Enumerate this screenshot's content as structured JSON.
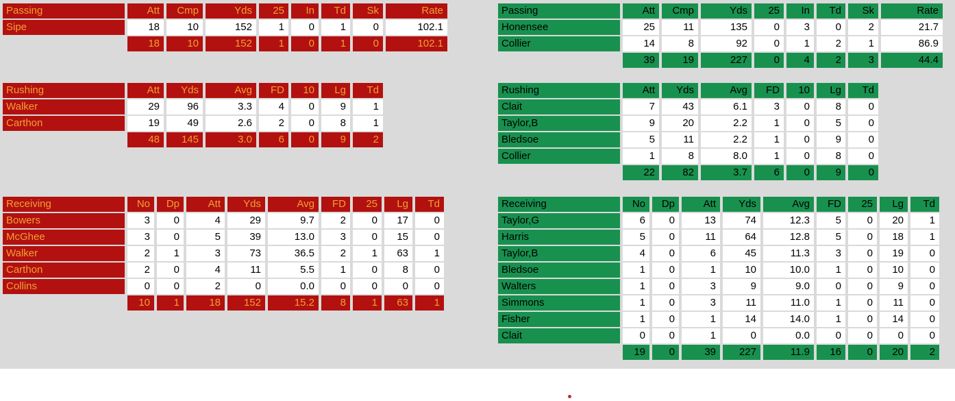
{
  "page": {
    "background": "#DADADA",
    "footer_background": "#FFFFFF",
    "marker_color": "#C13030"
  },
  "sections": [
    {
      "team": "left",
      "theme": {
        "header_bg": "#B21110",
        "header_text": "#F2A033"
      },
      "tables": [
        {
          "title": "Passing",
          "columns": [
            "Att",
            "Cmp",
            "Yds",
            "25",
            "In",
            "Td",
            "Sk",
            "Rate"
          ],
          "rows": [
            {
              "name": "Sipe",
              "values": [
                "18",
                "10",
                "152",
                "1",
                "0",
                "1",
                "0",
                "102.1"
              ]
            }
          ],
          "totals": [
            "18",
            "10",
            "152",
            "1",
            "0",
            "1",
            "0",
            "102.1"
          ]
        },
        {
          "title": "Rushing",
          "columns": [
            "Att",
            "Yds",
            "Avg",
            "FD",
            "10",
            "Lg",
            "Td"
          ],
          "rows": [
            {
              "name": "Walker",
              "values": [
                "29",
                "96",
                "3.3",
                "4",
                "0",
                "9",
                "1"
              ]
            },
            {
              "name": "Carthon",
              "values": [
                "19",
                "49",
                "2.6",
                "2",
                "0",
                "8",
                "1"
              ]
            }
          ],
          "totals": [
            "48",
            "145",
            "3.0",
            "6",
            "0",
            "9",
            "2"
          ]
        },
        {
          "title": "Receiving",
          "columns": [
            "No",
            "Dp",
            "Att",
            "Yds",
            "Avg",
            "FD",
            "25",
            "Lg",
            "Td"
          ],
          "rows": [
            {
              "name": "Bowers",
              "values": [
                "3",
                "0",
                "4",
                "29",
                "9.7",
                "2",
                "0",
                "17",
                "0"
              ]
            },
            {
              "name": "McGhee",
              "values": [
                "3",
                "0",
                "5",
                "39",
                "13.0",
                "3",
                "0",
                "15",
                "0"
              ]
            },
            {
              "name": "Walker",
              "values": [
                "2",
                "1",
                "3",
                "73",
                "36.5",
                "2",
                "1",
                "63",
                "1"
              ]
            },
            {
              "name": "Carthon",
              "values": [
                "2",
                "0",
                "4",
                "11",
                "5.5",
                "1",
                "0",
                "8",
                "0"
              ]
            },
            {
              "name": "Collins",
              "values": [
                "0",
                "0",
                "2",
                "0",
                "0.0",
                "0",
                "0",
                "0",
                "0"
              ]
            }
          ],
          "totals": [
            "10",
            "1",
            "18",
            "152",
            "15.2",
            "8",
            "1",
            "63",
            "1"
          ]
        }
      ]
    },
    {
      "team": "right",
      "theme": {
        "header_bg": "#18914F",
        "header_text": "#000000"
      },
      "tables": [
        {
          "title": "Passing",
          "columns": [
            "Att",
            "Cmp",
            "Yds",
            "25",
            "In",
            "Td",
            "Sk",
            "Rate"
          ],
          "rows": [
            {
              "name": "Honensee",
              "values": [
                "25",
                "11",
                "135",
                "0",
                "3",
                "0",
                "2",
                "21.7"
              ]
            },
            {
              "name": "Collier",
              "values": [
                "14",
                "8",
                "92",
                "0",
                "1",
                "2",
                "1",
                "86.9"
              ]
            }
          ],
          "totals": [
            "39",
            "19",
            "227",
            "0",
            "4",
            "2",
            "3",
            "44.4"
          ]
        },
        {
          "title": "Rushing",
          "columns": [
            "Att",
            "Yds",
            "Avg",
            "FD",
            "10",
            "Lg",
            "Td"
          ],
          "rows": [
            {
              "name": "Clait",
              "values": [
                "7",
                "43",
                "6.1",
                "3",
                "0",
                "8",
                "0"
              ]
            },
            {
              "name": "Taylor,B",
              "values": [
                "9",
                "20",
                "2.2",
                "1",
                "0",
                "5",
                "0"
              ]
            },
            {
              "name": "Bledsoe",
              "values": [
                "5",
                "11",
                "2.2",
                "1",
                "0",
                "9",
                "0"
              ]
            },
            {
              "name": "Collier",
              "values": [
                "1",
                "8",
                "8.0",
                "1",
                "0",
                "8",
                "0"
              ]
            }
          ],
          "totals": [
            "22",
            "82",
            "3.7",
            "6",
            "0",
            "9",
            "0"
          ]
        },
        {
          "title": "Receiving",
          "columns": [
            "No",
            "Dp",
            "Att",
            "Yds",
            "Avg",
            "FD",
            "25",
            "Lg",
            "Td"
          ],
          "rows": [
            {
              "name": "Taylor,G",
              "values": [
                "6",
                "0",
                "13",
                "74",
                "12.3",
                "5",
                "0",
                "20",
                "1"
              ]
            },
            {
              "name": "Harris",
              "values": [
                "5",
                "0",
                "11",
                "64",
                "12.8",
                "5",
                "0",
                "18",
                "1"
              ]
            },
            {
              "name": "Taylor,B",
              "values": [
                "4",
                "0",
                "6",
                "45",
                "11.3",
                "3",
                "0",
                "19",
                "0"
              ]
            },
            {
              "name": "Bledsoe",
              "values": [
                "1",
                "0",
                "1",
                "10",
                "10.0",
                "1",
                "0",
                "10",
                "0"
              ]
            },
            {
              "name": "Walters",
              "values": [
                "1",
                "0",
                "3",
                "9",
                "9.0",
                "0",
                "0",
                "9",
                "0"
              ]
            },
            {
              "name": "Simmons",
              "values": [
                "1",
                "0",
                "3",
                "11",
                "11.0",
                "1",
                "0",
                "11",
                "0"
              ]
            },
            {
              "name": "Fisher",
              "values": [
                "1",
                "0",
                "1",
                "14",
                "14.0",
                "1",
                "0",
                "14",
                "0"
              ]
            },
            {
              "name": "Clait",
              "values": [
                "0",
                "0",
                "1",
                "0",
                "0.0",
                "0",
                "0",
                "0",
                "0"
              ]
            }
          ],
          "totals": [
            "19",
            "0",
            "39",
            "227",
            "11.9",
            "16",
            "0",
            "20",
            "2"
          ]
        }
      ]
    }
  ]
}
